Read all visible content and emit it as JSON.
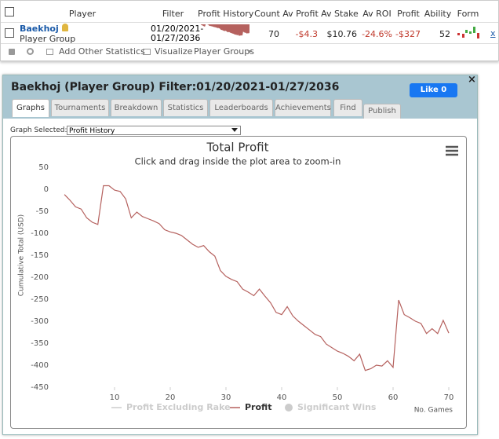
{
  "table": {
    "headers": [
      "Player",
      "Filter",
      "Profit History",
      "Count",
      "Av Profit",
      "Av Stake",
      "Av ROI",
      "Profit",
      "Ability",
      "Form"
    ],
    "row": {
      "player": "Baekhoj",
      "group": "Player Group",
      "filter": [
        "01/20/2021-",
        "01/27/2036"
      ],
      "count": "70",
      "av_profit": "-$4.3",
      "av_stake": "$10.76",
      "av_roi": "-24.6%",
      "profit": "-$327",
      "ability": "52",
      "remove": "x"
    }
  },
  "toolbar": {
    "add": "Add Other Statistics",
    "visualize": "Visualize",
    "groups": "Player Groups"
  },
  "panel": {
    "title": "Baekhoj (Player Group) Filter:01/20/2021-01/27/2036",
    "like": "Like 0",
    "close": "×",
    "tabs": [
      "Graphs",
      "Tournaments",
      "Breakdown",
      "Statistics",
      "Leaderboards",
      "Achievements",
      "Find",
      "Publish"
    ]
  },
  "graph_select": {
    "label": "Graph Selected:",
    "value": "Profit History"
  },
  "chart_data": {
    "type": "line",
    "title": "Total Profit",
    "subtitle": "Click and drag inside the plot area to zoom-in",
    "ylabel": "Cumulative Total (USD)",
    "xlabel": "No. Games",
    "x": [
      1,
      2,
      3,
      4,
      5,
      6,
      7,
      8,
      9,
      10,
      11,
      12,
      13,
      14,
      15,
      16,
      17,
      18,
      19,
      20,
      21,
      22,
      23,
      24,
      25,
      26,
      27,
      28,
      29,
      30,
      31,
      32,
      33,
      34,
      35,
      36,
      37,
      38,
      39,
      40,
      41,
      42,
      43,
      44,
      45,
      46,
      47,
      48,
      49,
      50,
      51,
      52,
      53,
      54,
      55,
      56,
      57,
      58,
      59,
      60,
      61,
      62,
      63,
      64,
      65,
      66,
      67,
      68,
      69,
      70
    ],
    "series": [
      {
        "name": "Profit Excluding Rake",
        "color": "#cccccc",
        "visible": false
      },
      {
        "name": "Profit",
        "color": "#b5615e",
        "visible": true,
        "values": [
          -12,
          -25,
          -40,
          -45,
          -65,
          -75,
          -80,
          8,
          8,
          -2,
          -5,
          -22,
          -65,
          -52,
          -62,
          -67,
          -72,
          -78,
          -92,
          -97,
          -100,
          -105,
          -115,
          -125,
          -132,
          -128,
          -142,
          -152,
          -185,
          -198,
          -205,
          -210,
          -227,
          -234,
          -242,
          -227,
          -243,
          -258,
          -280,
          -285,
          -267,
          -288,
          -300,
          -310,
          -320,
          -330,
          -335,
          -352,
          -360,
          -368,
          -373,
          -380,
          -390,
          -375,
          -412,
          -408,
          -400,
          -402,
          -390,
          -405,
          -252,
          -285,
          -292,
          -300,
          -305,
          -328,
          -317,
          -328,
          -298,
          -327
        ]
      },
      {
        "name": "Significant Wins",
        "color": "#cccccc",
        "visible": false,
        "marker": "circle"
      }
    ],
    "xlim": [
      0,
      70
    ],
    "xticks": [
      10,
      20,
      30,
      40,
      50,
      60,
      70
    ],
    "ylim": [
      -450,
      50
    ],
    "yticks": [
      -450,
      -400,
      -350,
      -300,
      -250,
      -200,
      -150,
      -100,
      -50,
      0,
      50
    ],
    "grid": false
  }
}
